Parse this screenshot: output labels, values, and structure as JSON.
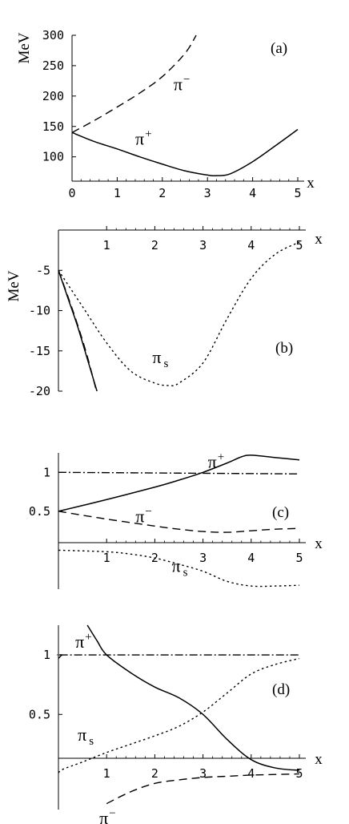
{
  "chart_data": [
    {
      "type": "line",
      "panel_label": "(a)",
      "ylabel": "MeV",
      "xlabel": "x",
      "xlim": [
        0,
        5
      ],
      "ylim": [
        60,
        300
      ],
      "x_ticks": [
        "0",
        "1",
        "2",
        "3",
        "4",
        "5"
      ],
      "y_ticks": [
        "100",
        "150",
        "200",
        "250",
        "300"
      ],
      "series": [
        {
          "name": "π⁺",
          "style": "solid",
          "x": [
            0,
            0.5,
            1,
            1.5,
            2,
            2.5,
            3,
            3.2,
            3.5,
            4,
            4.5,
            5
          ],
          "y": [
            140,
            125,
            113,
            100,
            88,
            77,
            70,
            69,
            72,
            92,
            118,
            145
          ]
        },
        {
          "name": "π⁻",
          "style": "dashed",
          "x": [
            0,
            0.5,
            1,
            1.5,
            2,
            2.5,
            2.75
          ],
          "y": [
            140,
            160,
            182,
            205,
            232,
            270,
            300
          ]
        }
      ],
      "annotations": [
        {
          "base": "π",
          "mark": "−",
          "x": 2.25,
          "y": 210
        },
        {
          "base": "π",
          "mark": "+",
          "x": 1.4,
          "y": 120
        }
      ]
    },
    {
      "type": "line",
      "panel_label": "(b)",
      "ylabel": "MeV",
      "xlabel": "x",
      "xlim": [
        0,
        5
      ],
      "ylim": [
        -20,
        0
      ],
      "x_ticks": [
        "1",
        "2",
        "3",
        "4",
        "5"
      ],
      "y_ticks": [
        "-5",
        "-10",
        "-15",
        "-20"
      ],
      "series": [
        {
          "name": "π s",
          "style": "dotted",
          "x": [
            0,
            0.5,
            1,
            1.5,
            2,
            2.3,
            2.5,
            3,
            3.5,
            4,
            4.5,
            5
          ],
          "y": [
            -5,
            -9.5,
            -14,
            -17.5,
            -19,
            -19.3,
            -19,
            -16.5,
            -11,
            -6,
            -3,
            -1.5
          ]
        },
        {
          "name": "",
          "style": "solid",
          "x": [
            0,
            0.2,
            0.4,
            0.6,
            0.8
          ],
          "y": [
            -5,
            -8.5,
            -12,
            -16,
            -20
          ]
        },
        {
          "name": "",
          "style": "dashed",
          "x": [
            0,
            0.2,
            0.4,
            0.6,
            0.78
          ],
          "y": [
            -5,
            -8.3,
            -11.8,
            -15.7,
            -19.8
          ]
        }
      ],
      "annotations": [
        {
          "base": "π",
          "mark": "s",
          "x": 1.95,
          "y": -16.5
        }
      ]
    },
    {
      "type": "line",
      "panel_label": "(c)",
      "xlabel": "x",
      "xlim": [
        0,
        5
      ],
      "ylim": [
        -0.5,
        1.25
      ],
      "x_ticks": [
        "1",
        "2",
        "3",
        "4",
        "5"
      ],
      "y_ticks": [
        "1",
        "0.5"
      ],
      "series": [
        {
          "name": "π⁺",
          "style": "solid",
          "x": [
            0,
            1,
            2,
            2.5,
            3,
            3.5,
            3.8,
            4,
            4.5,
            5
          ],
          "y": [
            0.5,
            0.65,
            0.81,
            0.9,
            1.0,
            1.12,
            1.2,
            1.22,
            1.19,
            1.16
          ]
        },
        {
          "name": "π⁻",
          "style": "dashed",
          "x": [
            0,
            1,
            2,
            2.5,
            3,
            3.5,
            4,
            4.5,
            5
          ],
          "y": [
            0.5,
            0.4,
            0.31,
            0.27,
            0.24,
            0.23,
            0.25,
            0.27,
            0.28
          ]
        },
        {
          "name": "π s",
          "style": "dotted",
          "x": [
            0,
            1,
            1.5,
            2,
            2.5,
            3,
            3.5,
            4,
            4.5,
            5
          ],
          "y": [
            0,
            -0.02,
            -0.05,
            -0.1,
            -0.18,
            -0.27,
            -0.4,
            -0.46,
            -0.46,
            -0.45
          ]
        },
        {
          "name": "",
          "style": "dashdot",
          "x": [
            0,
            5
          ],
          "y": [
            1.0,
            0.98
          ]
        }
      ],
      "annotations": [
        {
          "base": "π",
          "mark": "+",
          "x": 3.1,
          "y": 1.06
        },
        {
          "base": "π",
          "mark": "−",
          "x": 1.6,
          "y": 0.36
        },
        {
          "base": "π",
          "mark": "s",
          "x": 2.35,
          "y": -0.28
        }
      ]
    },
    {
      "type": "line",
      "panel_label": "(d)",
      "xlabel": "x",
      "xlim": [
        0,
        5
      ],
      "ylim": [
        -0.3,
        1.25
      ],
      "x_ticks": [
        "1",
        "2",
        "3",
        "4",
        "5"
      ],
      "y_ticks": [
        "1",
        "0.5"
      ],
      "series": [
        {
          "name": "π⁺",
          "style": "solid",
          "x": [
            0.6,
            0.8,
            1,
            1.5,
            2,
            2.5,
            3,
            3.5,
            4,
            4.5,
            5
          ],
          "y": [
            1.25,
            1.12,
            1.0,
            0.85,
            0.73,
            0.64,
            0.5,
            0.29,
            0.12,
            0.05,
            0.03
          ]
        },
        {
          "name": "π s",
          "style": "dotted",
          "x": [
            0,
            0.1,
            0.5,
            1,
            1.5,
            2,
            2.5,
            3,
            3.5,
            4,
            4.5,
            5
          ],
          "y": [
            0.01,
            0.04,
            0.1,
            0.18,
            0.25,
            0.32,
            0.4,
            0.52,
            0.68,
            0.84,
            0.92,
            0.97
          ]
        },
        {
          "name": "π⁻",
          "style": "dashed",
          "x": [
            1,
            1.5,
            2,
            2.5,
            3,
            3.5,
            4,
            4.5,
            5
          ],
          "y": [
            -0.25,
            -0.15,
            -0.08,
            -0.05,
            -0.03,
            -0.02,
            -0.01,
            -0.005,
            0
          ]
        },
        {
          "name": "",
          "style": "dashdot",
          "x": [
            0,
            0.08,
            0.2,
            5
          ],
          "y": [
            0.97,
            1.0,
            1.0,
            1.0
          ]
        }
      ],
      "annotations": [
        {
          "base": "π",
          "mark": "+",
          "x": 0.35,
          "y": 1.06
        },
        {
          "base": "π",
          "mark": "s",
          "x": 0.4,
          "y": 0.28
        },
        {
          "base": "π",
          "mark": "−",
          "x": 0.85,
          "y": -0.42
        }
      ]
    }
  ]
}
